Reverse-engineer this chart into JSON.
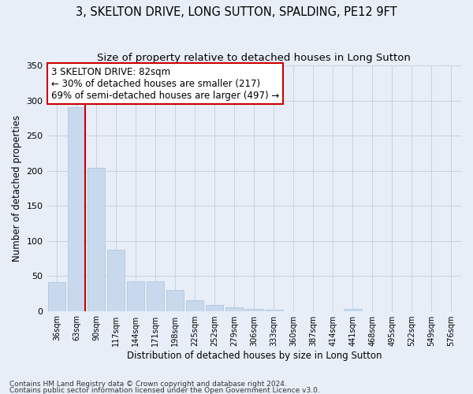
{
  "title": "3, SKELTON DRIVE, LONG SUTTON, SPALDING, PE12 9FT",
  "subtitle": "Size of property relative to detached houses in Long Sutton",
  "xlabel": "Distribution of detached houses by size in Long Sutton",
  "ylabel": "Number of detached properties",
  "footnote1": "Contains HM Land Registry data © Crown copyright and database right 2024.",
  "footnote2": "Contains public sector information licensed under the Open Government Licence v3.0.",
  "bin_labels": [
    "36sqm",
    "63sqm",
    "90sqm",
    "117sqm",
    "144sqm",
    "171sqm",
    "198sqm",
    "225sqm",
    "252sqm",
    "279sqm",
    "306sqm",
    "333sqm",
    "360sqm",
    "387sqm",
    "414sqm",
    "441sqm",
    "468sqm",
    "495sqm",
    "522sqm",
    "549sqm",
    "576sqm"
  ],
  "bar_values": [
    41,
    290,
    204,
    87,
    42,
    42,
    30,
    15,
    8,
    5,
    3,
    2,
    0,
    0,
    0,
    3,
    0,
    0,
    0,
    0,
    0
  ],
  "bar_color": "#c8d9ee",
  "bar_edgecolor": "#aac0d8",
  "vline_x_bar_idx": 1,
  "vline_color": "#cc0000",
  "annotation_text": "3 SKELTON DRIVE: 82sqm\n← 30% of detached houses are smaller (217)\n69% of semi-detached houses are larger (497) →",
  "annotation_box_facecolor": "#ffffff",
  "annotation_box_edgecolor": "#cc0000",
  "ylim": [
    0,
    350
  ],
  "yticks": [
    0,
    50,
    100,
    150,
    200,
    250,
    300,
    350
  ],
  "background_color": "#e8eef8",
  "grid_color": "#c8d2e0",
  "title_fontsize": 10.5,
  "subtitle_fontsize": 9.5,
  "xlabel_fontsize": 8.5,
  "ylabel_fontsize": 8.5,
  "tick_fontsize": 8,
  "annot_fontsize": 8.5,
  "footnote_fontsize": 6.5
}
